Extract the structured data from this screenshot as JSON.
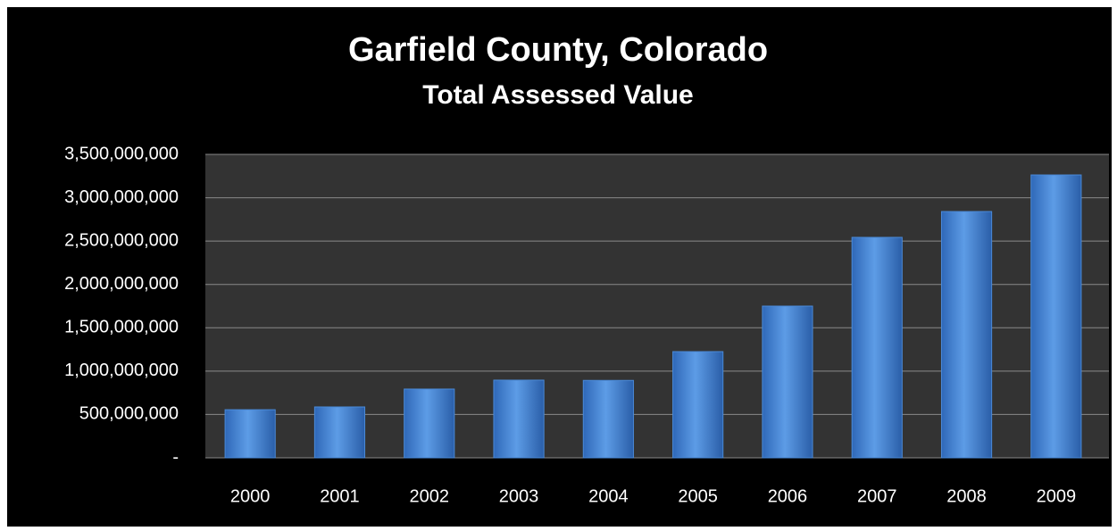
{
  "chart_data": {
    "type": "bar",
    "title": "Garfield County, Colorado",
    "subtitle": "Total Assessed Value",
    "categories": [
      "2000",
      "2001",
      "2002",
      "2003",
      "2004",
      "2005",
      "2006",
      "2007",
      "2008",
      "2009"
    ],
    "values": [
      555000000,
      587000000,
      793000000,
      896000000,
      893000000,
      1225000000,
      1750000000,
      2543000000,
      2841000000,
      3263000000
    ],
    "color": "#4a8ad8",
    "ylim": [
      0,
      3500000000
    ],
    "yticks": [
      {
        "value": 0,
        "label": "-"
      },
      {
        "value": 500000000,
        "label": "500,000,000"
      },
      {
        "value": 1000000000,
        "label": "1,000,000,000"
      },
      {
        "value": 1500000000,
        "label": "1,500,000,000"
      },
      {
        "value": 2000000000,
        "label": "2,000,000,000"
      },
      {
        "value": 2500000000,
        "label": "2,500,000,000"
      },
      {
        "value": 3000000000,
        "label": "3,000,000,000"
      },
      {
        "value": 3500000000,
        "label": "3,500,000,000"
      }
    ],
    "grid": true
  }
}
